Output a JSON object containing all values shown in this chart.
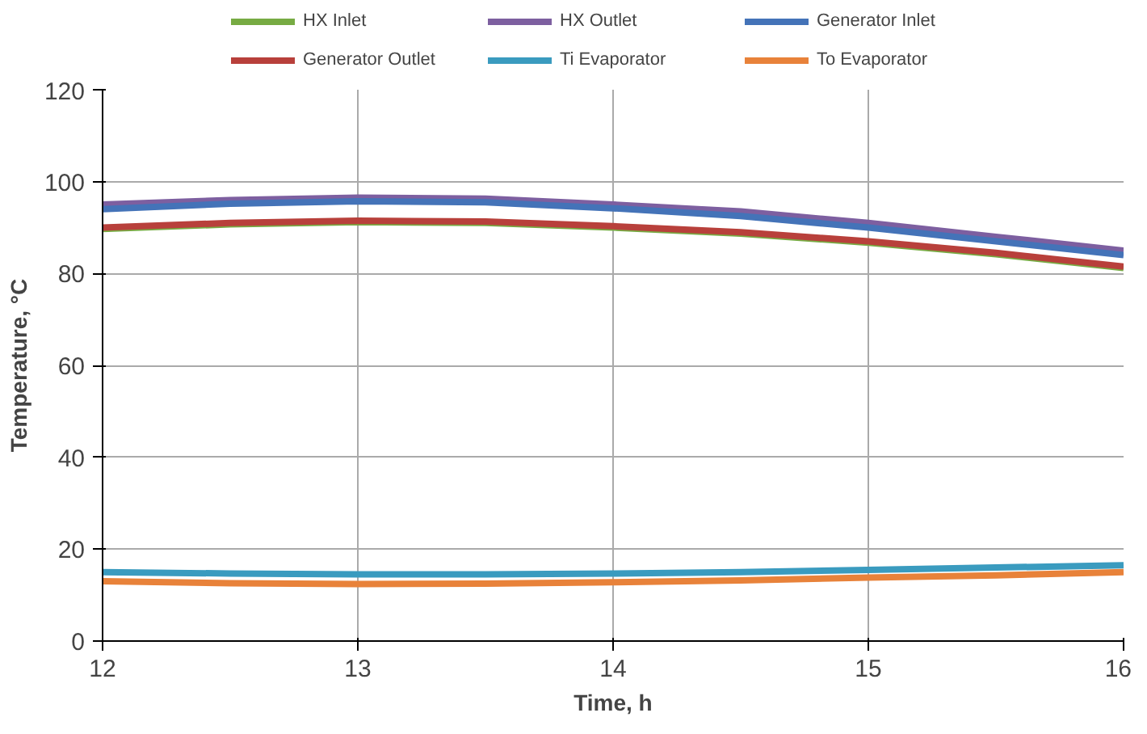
{
  "chart_data": {
    "type": "line",
    "xlabel": "Time, h",
    "ylabel": "Temperature, °C",
    "x": [
      12,
      12.5,
      13,
      13.5,
      14,
      14.5,
      15,
      15.5,
      16
    ],
    "series": [
      {
        "name": "HX Inlet",
        "color": "#77ab43",
        "values": [
          89.7,
          90.7,
          91.2,
          91.0,
          90.0,
          88.7,
          86.7,
          84.2,
          81.2
        ]
      },
      {
        "name": "HX Outlet",
        "color": "#7d5fa0",
        "values": [
          95,
          96,
          96.5,
          96.3,
          95,
          93.5,
          91,
          88,
          85
        ]
      },
      {
        "name": "Generator Inlet",
        "color": "#4473b8",
        "values": [
          94,
          95.2,
          95.7,
          95.5,
          94.2,
          92.5,
          90,
          87,
          84
        ]
      },
      {
        "name": "Generator Outlet",
        "color": "#b8403b",
        "values": [
          90,
          91,
          91.5,
          91.3,
          90.3,
          89,
          87,
          84.5,
          81.5
        ]
      },
      {
        "name": "Ti Evaporator",
        "color": "#3a9bbf",
        "values": [
          15,
          14.7,
          14.5,
          14.5,
          14.7,
          15,
          15.5,
          16,
          16.5
        ]
      },
      {
        "name": "To Evaporator",
        "color": "#e8823a",
        "values": [
          13,
          12.6,
          12.4,
          12.5,
          12.8,
          13.2,
          13.8,
          14.3,
          15
        ]
      }
    ],
    "xlim": [
      12,
      16
    ],
    "xticks": [
      12,
      13,
      14,
      15,
      16
    ],
    "ylim": [
      0,
      120
    ],
    "yticks": [
      0,
      20,
      40,
      60,
      80,
      100,
      120
    ],
    "grid": true,
    "legend": "top",
    "marker": "none",
    "line_style": "solid"
  }
}
